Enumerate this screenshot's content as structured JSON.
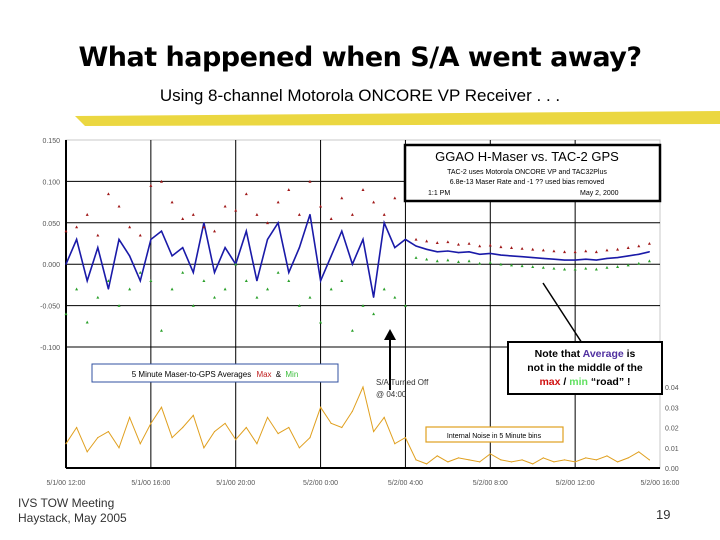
{
  "slide": {
    "title": "What happened when S/A went away?",
    "subtitle": "Using 8-channel Motorola ONCORE VP Receiver . . .",
    "footer_line1": "IVS TOW Meeting",
    "footer_line2": "Haystack, May 2005",
    "page_number": "19"
  },
  "chart_box": {
    "title": "GGAO H-Maser vs. TAC-2 GPS",
    "line1": "TAC-2 uses Motorola ONCORE VP and TAC32Plus",
    "line2": "6.8e-13 Maser Rate and -1 ?? used bias removed",
    "line3_left": "1:1 PM",
    "line3_right": "May 2, 2000"
  },
  "legend": {
    "text": "5 Minute Maser-to-GPS Averages",
    "max": "Max",
    "amp": "&",
    "min": "Min"
  },
  "noise_legend": "Internal Noise in 5 Minute bins",
  "annotation": {
    "line1": "S/A Turned Off",
    "line2": "@ 04:00"
  },
  "note": {
    "l1a": "Note that ",
    "l1b": "Average",
    "l1c": " is",
    "l2": "not in the middle of the",
    "l3a": "max",
    "l3b": " / ",
    "l3c": "min",
    "l3d": " “road” !"
  },
  "colors": {
    "average": "#1a1aa8",
    "max": "#a01818",
    "min": "#2aa02a",
    "noise": "#e0a020",
    "highlight": "#e8d020",
    "note_average": "#5030a0",
    "note_max": "#d01010",
    "note_min": "#60e060"
  },
  "chart_data": {
    "type": "line",
    "xlabel": "",
    "ylabel": "",
    "x_tick_labels": [
      "5/1/00 12:00",
      "5/1/00 16:00",
      "5/1/00 20:00",
      "5/2/00 0:00",
      "5/2/00 4:00",
      "5/2/00 8:00",
      "5/2/00 12:00",
      "5/2/00 16:00"
    ],
    "y_left_tick_labels": [
      "0.150",
      "0.100",
      "0.050",
      "0.000",
      "-0.050",
      "-0.100"
    ],
    "y_left_range": [
      -0.1,
      0.15
    ],
    "y_right_tick_labels": [
      "0.04",
      "0.03",
      "0.02",
      "0.01",
      "0.00"
    ],
    "y_right_range": [
      0,
      0.04
    ],
    "grid": true,
    "x": [
      "5/1 12:00",
      "5/1 12:30",
      "5/1 13:00",
      "5/1 13:30",
      "5/1 14:00",
      "5/1 14:30",
      "5/1 15:00",
      "5/1 15:30",
      "5/1 16:00",
      "5/1 16:30",
      "5/1 17:00",
      "5/1 17:30",
      "5/1 18:00",
      "5/1 18:30",
      "5/1 19:00",
      "5/1 19:30",
      "5/1 20:00",
      "5/1 20:30",
      "5/1 21:00",
      "5/1 21:30",
      "5/1 22:00",
      "5/1 22:30",
      "5/1 23:00",
      "5/1 23:30",
      "5/2 0:00",
      "5/2 0:30",
      "5/2 1:00",
      "5/2 1:30",
      "5/2 2:00",
      "5/2 2:30",
      "5/2 3:00",
      "5/2 3:30",
      "5/2 4:00",
      "5/2 4:30",
      "5/2 5:00",
      "5/2 5:30",
      "5/2 6:00",
      "5/2 6:30",
      "5/2 7:00",
      "5/2 7:30",
      "5/2 8:00",
      "5/2 8:30",
      "5/2 9:00",
      "5/2 9:30",
      "5/2 10:00",
      "5/2 10:30",
      "5/2 11:00",
      "5/2 11:30",
      "5/2 12:00",
      "5/2 12:30",
      "5/2 13:00",
      "5/2 13:30",
      "5/2 14:00",
      "5/2 14:30",
      "5/2 15:00",
      "5/2 15:30",
      "5/2 16:00"
    ],
    "series": [
      {
        "key": "average",
        "axis": "left",
        "style": "line",
        "values": [
          0.0,
          0.03,
          -0.02,
          0.02,
          -0.03,
          0.03,
          0.01,
          -0.02,
          0.03,
          0.04,
          0.01,
          0.02,
          -0.01,
          0.05,
          -0.01,
          0.02,
          0.0,
          0.04,
          -0.02,
          0.03,
          0.05,
          -0.01,
          0.02,
          0.06,
          -0.02,
          0.01,
          0.04,
          0.0,
          0.03,
          -0.04,
          0.05,
          0.02,
          0.03,
          0.022,
          0.018,
          0.015,
          0.016,
          0.014,
          0.015,
          0.012,
          0.013,
          0.011,
          0.01,
          0.009,
          0.008,
          0.007,
          0.006,
          0.005,
          0.005,
          0.006,
          0.005,
          0.007,
          0.008,
          0.01,
          0.012,
          0.015,
          null
        ]
      },
      {
        "key": "max",
        "name": "Max",
        "axis": "left",
        "style": "points",
        "values": [
          0.04,
          0.045,
          0.06,
          0.035,
          0.085,
          0.07,
          0.045,
          0.035,
          0.095,
          0.1,
          0.075,
          0.055,
          0.06,
          0.045,
          0.04,
          0.07,
          0.065,
          0.085,
          0.06,
          0.05,
          0.075,
          0.09,
          0.06,
          0.1,
          0.07,
          0.055,
          0.08,
          0.06,
          0.09,
          0.075,
          0.06,
          0.08,
          0.095,
          0.03,
          0.028,
          0.026,
          0.027,
          0.024,
          0.025,
          0.022,
          0.023,
          0.021,
          0.02,
          0.019,
          0.018,
          0.017,
          0.016,
          0.015,
          0.015,
          0.016,
          0.015,
          0.017,
          0.018,
          0.02,
          0.022,
          0.025,
          null
        ]
      },
      {
        "key": "min",
        "name": "Min",
        "axis": "left",
        "style": "points",
        "values": [
          -0.06,
          -0.03,
          -0.07,
          -0.04,
          -0.02,
          -0.05,
          -0.03,
          -0.01,
          -0.02,
          -0.08,
          -0.03,
          -0.01,
          -0.05,
          -0.02,
          -0.04,
          -0.03,
          0.0,
          -0.02,
          -0.04,
          -0.03,
          -0.01,
          -0.02,
          -0.05,
          -0.04,
          -0.07,
          -0.03,
          -0.02,
          -0.08,
          -0.05,
          -0.06,
          -0.03,
          -0.04,
          -0.05,
          0.008,
          0.006,
          0.004,
          0.005,
          0.003,
          0.004,
          0.001,
          0.002,
          0.0,
          -0.001,
          -0.002,
          -0.003,
          -0.004,
          -0.005,
          -0.006,
          -0.006,
          -0.005,
          -0.006,
          -0.004,
          -0.003,
          -0.001,
          0.001,
          0.004,
          null
        ]
      },
      {
        "key": "noise",
        "axis": "right",
        "style": "line",
        "values": [
          0.012,
          0.02,
          0.008,
          0.015,
          0.018,
          0.01,
          0.025,
          0.012,
          0.022,
          0.03,
          0.015,
          0.02,
          0.026,
          0.01,
          0.018,
          0.022,
          0.014,
          0.02,
          0.012,
          0.025,
          0.017,
          0.02,
          0.01,
          0.015,
          0.03,
          0.022,
          0.02,
          0.028,
          0.04,
          0.018,
          0.025,
          0.012,
          0.015,
          0.004,
          0.002,
          0.006,
          0.003,
          0.005,
          0.004,
          0.003,
          0.007,
          0.004,
          0.003,
          0.004,
          0.002,
          0.005,
          0.003,
          0.004,
          0.003,
          0.005,
          0.004,
          0.006,
          0.003,
          0.005,
          0.008,
          0.004,
          null
        ]
      }
    ]
  }
}
